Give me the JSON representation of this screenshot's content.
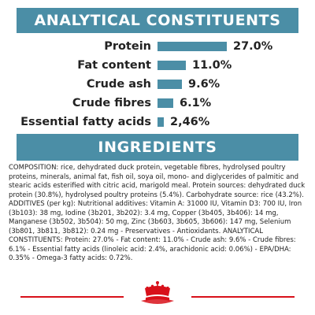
{
  "analytical": {
    "title": "ANALYTICAL CONSTITUENTS",
    "rows": [
      {
        "label": "Protein",
        "value": "27.0%",
        "amount": 27.0
      },
      {
        "label": "Fat content",
        "value": "11.0%",
        "amount": 11.0
      },
      {
        "label": "Crude ash",
        "value": "9.6%",
        "amount": 9.6
      },
      {
        "label": "Crude fibres",
        "value": "6.1%",
        "amount": 6.1
      },
      {
        "label": "Essential fatty acids",
        "value": "2,46%",
        "amount": 2.46
      }
    ]
  },
  "ingredients": {
    "title": "INGREDIENTS",
    "text": "COMPOSITION: rice, dehydrated duck protein, vegetable fibres, hydrolysed poultry proteins, minerals, animal fat, fish oil, soya oil, mono- and diglycerides of palmitic and stearic acids esterified with citric acid, marigold meal. Protein sources: dehydrated duck protein (30.8%), hydrolysed poultry proteins (5.4%). Carbohydrate source: rice (43.2%). ADDITIVES (per kg): Nutritional additives: Vitamin A: 31000 IU, Vitamin D3: 700 IU, Iron (3b103): 38 mg, Iodine (3b201, 3b202): 3.4 mg, Copper (3b405, 3b406): 14 mg, Manganese (3b502, 3b504): 50 mg, Zinc (3b603, 3b605, 3b606): 147 mg, Selenium (3b801, 3b811, 3b812): 0.24 mg - Preservatives - Antioxidants. ANALYTICAL CONSTITUENTS: Protein: 27.0% - Fat content: 11.0% - Crude ash: 9.6% - Crude fibres: 6.1% - Essential fatty acids (linoleic acid: 2.4%, arachidonic acid: 0.06%) - EPA/DHA: 0.35% - Omega-3 fatty acids: 0.72%."
  },
  "footer": {
    "logo_icon": "royal-crown-logo-icon",
    "accent_color": "#d8101a"
  },
  "colors": {
    "banner": "#4b8ea6",
    "bar": "#4b8ea6",
    "text": "#222222"
  }
}
